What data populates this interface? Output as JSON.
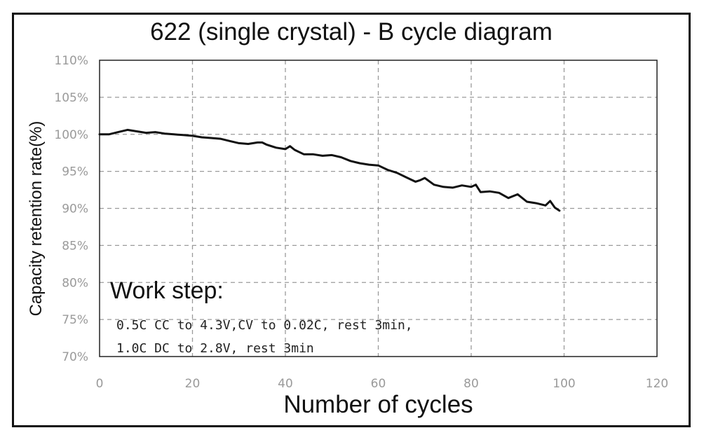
{
  "chart_data": {
    "type": "line",
    "title": "622 (single crystal) - B cycle diagram",
    "xlabel": "Number of cycles",
    "ylabel": "Capacity retention rate(%)",
    "xlim": [
      0,
      120
    ],
    "ylim": [
      70,
      110
    ],
    "x_ticks": [
      "0",
      "20",
      "40",
      "60",
      "80",
      "100",
      "120"
    ],
    "y_ticks": [
      "70%",
      "75%",
      "80%",
      "85%",
      "90%",
      "95%",
      "100%",
      "105%",
      "110%"
    ],
    "x_tick_values": [
      0,
      20,
      40,
      60,
      80,
      100,
      120
    ],
    "y_tick_values": [
      70,
      75,
      80,
      85,
      90,
      95,
      100,
      105,
      110
    ],
    "grid": true,
    "line_color": "#111111",
    "series": [
      {
        "name": "",
        "x": [
          0,
          2,
          4,
          6,
          8,
          10,
          12,
          14,
          16,
          18,
          20,
          22,
          24,
          26,
          28,
          30,
          32,
          34,
          35,
          36,
          38,
          40,
          41,
          42,
          44,
          46,
          48,
          50,
          52,
          54,
          56,
          58,
          60,
          62,
          64,
          66,
          68,
          69,
          70,
          72,
          74,
          76,
          78,
          80,
          81,
          82,
          84,
          86,
          88,
          90,
          92,
          94,
          96,
          97,
          98,
          99
        ],
        "y": [
          100,
          100,
          100.3,
          100.6,
          100.4,
          100.2,
          100.3,
          100.1,
          100,
          99.9,
          99.8,
          99.6,
          99.5,
          99.4,
          99.1,
          98.8,
          98.7,
          98.9,
          98.9,
          98.6,
          98.2,
          98,
          98.4,
          97.9,
          97.3,
          97.3,
          97.1,
          97.2,
          96.9,
          96.4,
          96.1,
          95.9,
          95.8,
          95.2,
          94.8,
          94.2,
          93.6,
          93.8,
          94.1,
          93.2,
          92.9,
          92.8,
          93.1,
          92.9,
          93.2,
          92.2,
          92.3,
          92.1,
          91.4,
          91.9,
          90.9,
          90.7,
          90.4,
          91,
          90.1,
          89.7
        ]
      }
    ]
  },
  "annotation": {
    "title": "Work step:",
    "line1": "0.5C CC to 4.3V,CV to 0.02C, rest 3min,",
    "line2": "1.0C DC to 2.8V, rest 3min"
  }
}
